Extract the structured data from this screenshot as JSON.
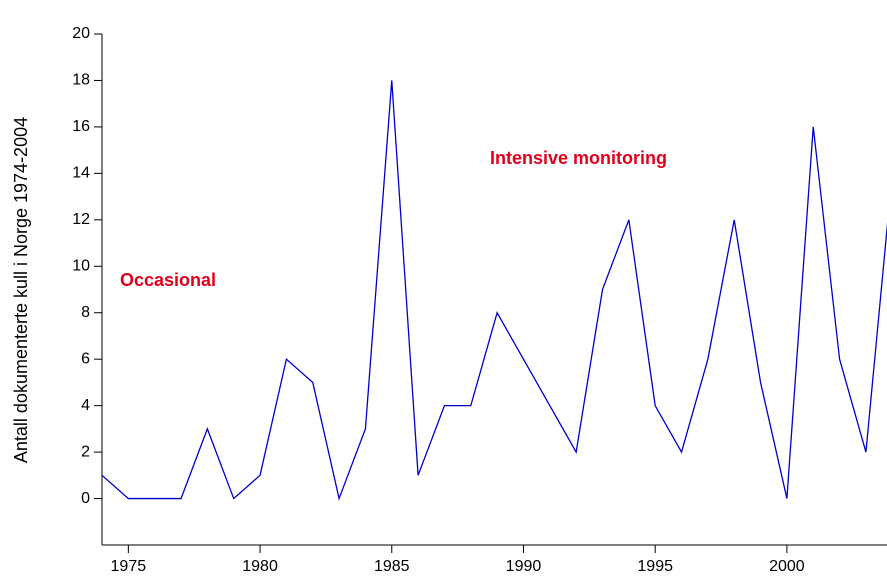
{
  "chart_data": {
    "type": "line",
    "y_label": "Antall dokumenterte kull i Norge 1974-2004",
    "annotations": [
      "Occasional",
      "Intensive monitoring"
    ],
    "x": [
      1974,
      1975,
      1976,
      1977,
      1978,
      1979,
      1980,
      1981,
      1982,
      1983,
      1984,
      1985,
      1986,
      1987,
      1988,
      1989,
      1990,
      1991,
      1992,
      1993,
      1994,
      1995,
      1996,
      1997,
      1998,
      1999,
      2000,
      2001,
      2002,
      2003,
      2004
    ],
    "series": [
      {
        "color": "#0000cc",
        "values": [
          1,
          0,
          0,
          0,
          3,
          0,
          1,
          6,
          5,
          0,
          3,
          18,
          1,
          4,
          4,
          8,
          6,
          4,
          2,
          9,
          12,
          4,
          2,
          6,
          12,
          5,
          0,
          16,
          6,
          2,
          14
        ]
      }
    ],
    "xlim": [
      1974,
      2003.8
    ],
    "xticks": [
      1975,
      1980,
      1985,
      1990,
      1995,
      2000
    ],
    "ylim": [
      -2,
      20
    ],
    "yticks": [
      0,
      2,
      4,
      6,
      8,
      10,
      12,
      14,
      16,
      18,
      20
    ]
  }
}
